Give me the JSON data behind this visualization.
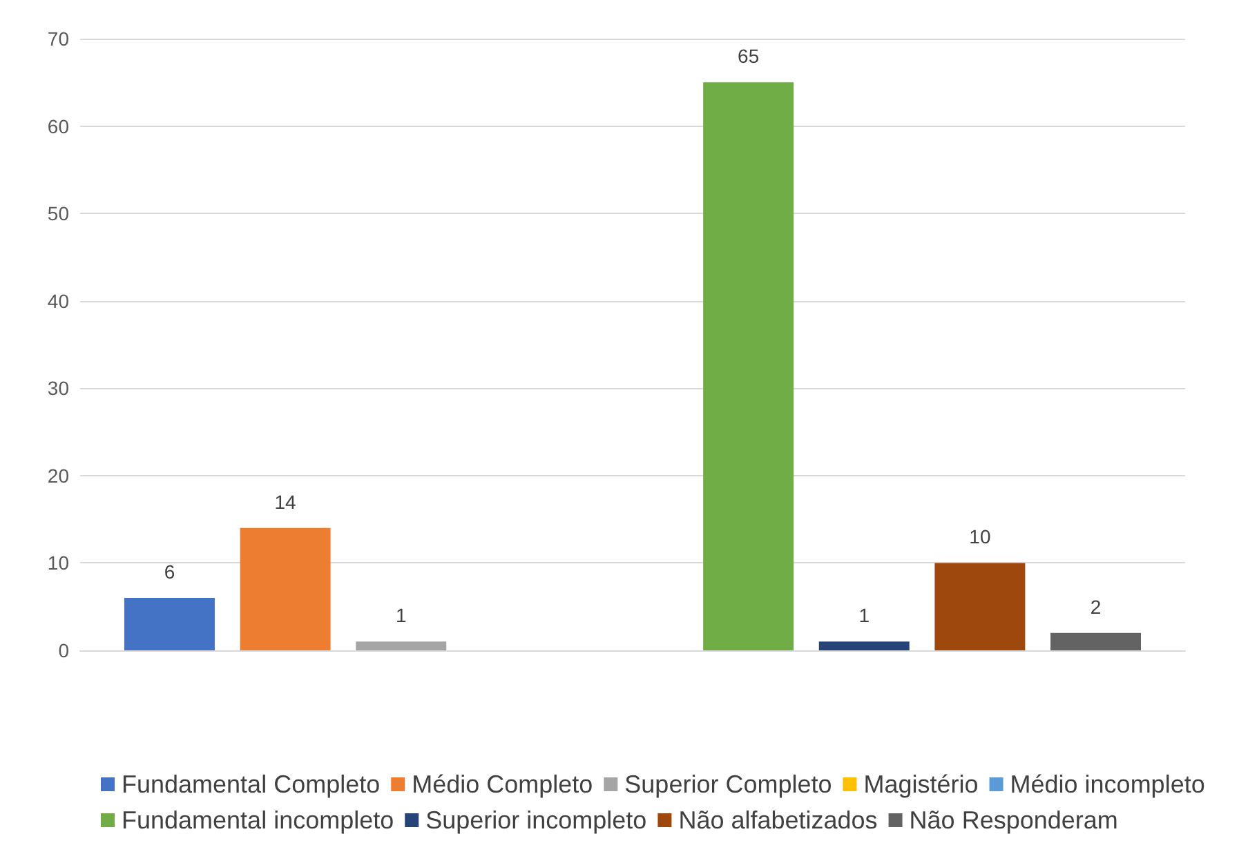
{
  "chart_data": {
    "type": "bar",
    "categories": [
      null
    ],
    "series": [
      {
        "name": "Fundamental Completo",
        "color": "#4472c4",
        "values": [
          6
        ]
      },
      {
        "name": "Médio Completo",
        "color": "#ed7d31",
        "values": [
          14
        ]
      },
      {
        "name": "Superior Completo",
        "color": "#a5a5a5",
        "values": [
          1
        ]
      },
      {
        "name": "Magistério",
        "color": "#ffc000",
        "values": [
          null
        ]
      },
      {
        "name": "Médio incompleto",
        "color": "#5b9bd5",
        "values": [
          null
        ]
      },
      {
        "name": "Fundamental incompleto",
        "color": "#70ad47",
        "values": [
          65
        ]
      },
      {
        "name": "Superior incompleto",
        "color": "#264478",
        "values": [
          1
        ]
      },
      {
        "name": "Não alfabetizados",
        "color": "#9e480e",
        "values": [
          10
        ]
      },
      {
        "name": "Não Responderam",
        "color": "#636363",
        "values": [
          2
        ]
      }
    ],
    "ylim": [
      0,
      70
    ],
    "yticks": [
      0,
      10,
      20,
      30,
      40,
      50,
      60,
      70
    ],
    "grid": "y",
    "legend": "bottom",
    "data_labels": true
  }
}
